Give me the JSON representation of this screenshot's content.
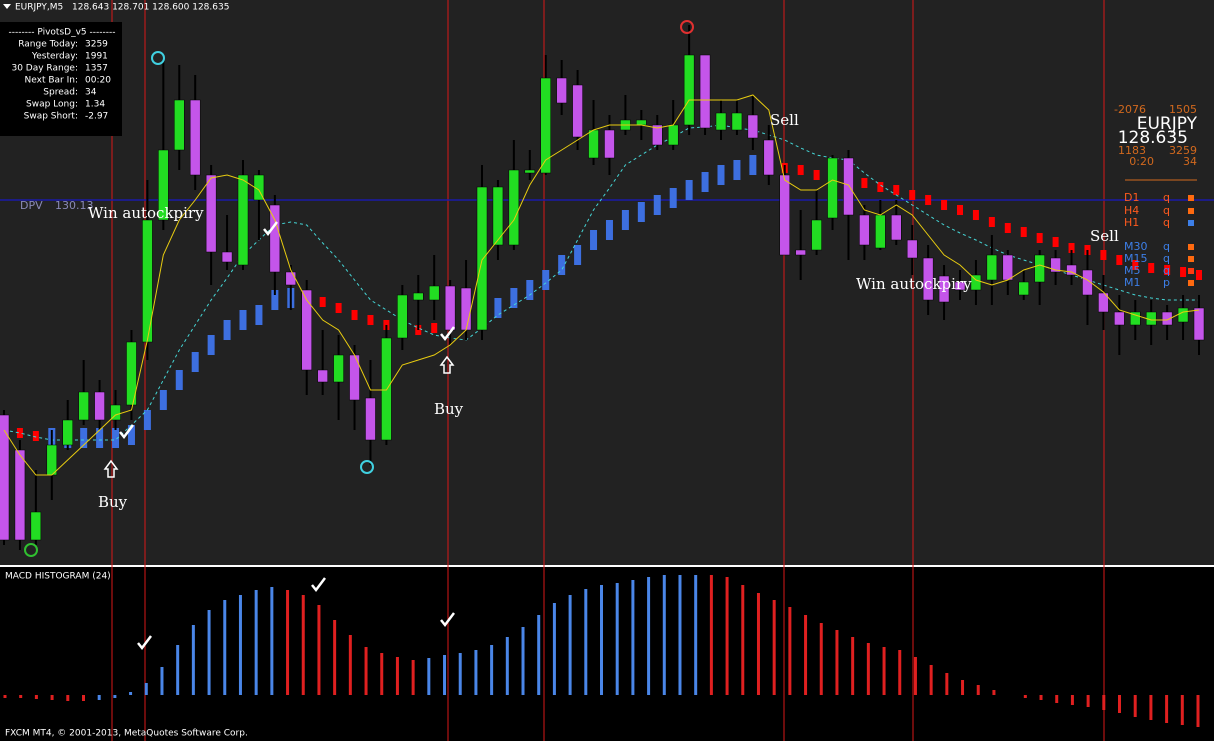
{
  "header": {
    "symbol": "EURJPY,M5",
    "ohlc": "128.643 128.701 128.600 128.635"
  },
  "pivots_panel": {
    "title": "-------- PivotsD_v5 --------",
    "rows": [
      [
        "Range Today:",
        3259
      ],
      [
        "Yesterday:",
        1991
      ],
      [
        "30 Day Range:",
        1357
      ],
      [
        "Next Bar In:",
        "00:20"
      ],
      [
        "Spread:",
        34
      ],
      [
        "Swap Long:",
        1.34
      ],
      [
        "Swap Short:",
        -2.97
      ]
    ]
  },
  "info_panel": {
    "left_top": -2076,
    "right_top": 1505,
    "symbol": "EURJPY",
    "price": 128.635,
    "left_mid": 1183,
    "right_mid": 3259,
    "timer": "0:20",
    "spread": 34,
    "timeframes": [
      {
        "label": "D1",
        "signal": "q",
        "label_color": "#ff5a1e",
        "box_color": "#ff6a10"
      },
      {
        "label": "H4",
        "signal": "q",
        "label_color": "#ff5a1e",
        "box_color": "#ff6a10"
      },
      {
        "label": "H1",
        "signal": "q",
        "label_color": "#ff5a1e",
        "box_color": "#3d7fe8"
      },
      {
        "label": "M30",
        "signal": "q",
        "label_color": "#3d7fe8",
        "box_color": "#ff6a10"
      },
      {
        "label": "M15",
        "signal": "q",
        "label_color": "#3d7fe8",
        "box_color": "#ff6a10"
      },
      {
        "label": "M5",
        "signal": "q",
        "label_color": "#3d7fe8",
        "box_color": "#ff3a10"
      },
      {
        "label": "M1",
        "signal": "p",
        "label_color": "#3d7fe8",
        "box_color": "#ff6a10"
      }
    ]
  },
  "annotations": {
    "buy": "Buy",
    "sell": "Sell",
    "win": "Win autockpiry"
  },
  "footer": "FXCM MT4, © 2001-2013, MetaQuotes Software Corp.",
  "chart_data": [
    {
      "type": "candlestick",
      "ylim": [
        126.48,
        132.13
      ],
      "up_color": "#22dd22",
      "down_color": "#c455ea",
      "wick_color": "#000000",
      "dpv": {
        "label": "DPV",
        "value": 130.13,
        "color": "#1a1aa8"
      },
      "candles": [
        [
          127.98,
          128.03,
          126.68,
          126.73
        ],
        [
          127.63,
          127.73,
          126.63,
          126.73
        ],
        [
          126.73,
          127.43,
          126.68,
          127.01
        ],
        [
          127.38,
          127.83,
          127.13,
          127.68
        ],
        [
          127.68,
          128.13,
          127.63,
          127.93
        ],
        [
          127.93,
          128.53,
          127.88,
          128.21
        ],
        [
          128.21,
          128.33,
          127.83,
          127.93
        ],
        [
          127.93,
          128.23,
          127.83,
          128.08
        ],
        [
          128.08,
          128.83,
          127.93,
          128.71
        ],
        [
          128.71,
          130.33,
          128.53,
          129.93
        ],
        [
          129.93,
          131.53,
          129.83,
          130.63
        ],
        [
          130.63,
          131.48,
          130.43,
          131.13
        ],
        [
          131.13,
          131.38,
          130.23,
          130.38
        ],
        [
          130.38,
          130.48,
          129.28,
          129.61
        ],
        [
          129.61,
          129.98,
          129.43,
          129.51
        ],
        [
          129.48,
          130.53,
          129.43,
          130.38
        ],
        [
          130.13,
          130.43,
          129.73,
          130.38
        ],
        [
          130.08,
          130.18,
          129.18,
          129.41
        ],
        [
          129.41,
          129.48,
          129.03,
          129.28
        ],
        [
          129.23,
          129.33,
          128.18,
          128.43
        ],
        [
          128.43,
          128.83,
          128.18,
          128.31
        ],
        [
          128.31,
          128.78,
          127.93,
          128.58
        ],
        [
          128.58,
          128.68,
          127.83,
          128.13
        ],
        [
          128.15,
          128.53,
          127.48,
          127.73
        ],
        [
          127.73,
          128.88,
          127.68,
          128.75
        ],
        [
          128.75,
          129.28,
          128.63,
          129.18
        ],
        [
          129.13,
          129.38,
          128.83,
          129.2
        ],
        [
          129.13,
          129.58,
          128.93,
          129.27
        ],
        [
          129.27,
          129.33,
          128.68,
          128.83
        ],
        [
          129.25,
          129.53,
          128.73,
          128.83
        ],
        [
          128.83,
          130.48,
          128.73,
          130.26
        ],
        [
          129.68,
          130.33,
          129.53,
          130.26
        ],
        [
          129.68,
          130.73,
          129.63,
          130.43
        ],
        [
          130.4,
          130.63,
          130.33,
          130.43
        ],
        [
          130.4,
          131.58,
          130.38,
          131.35
        ],
        [
          131.35,
          131.53,
          130.98,
          131.1
        ],
        [
          131.28,
          131.43,
          130.63,
          130.76
        ],
        [
          130.55,
          131.13,
          130.48,
          130.83
        ],
        [
          130.83,
          130.98,
          130.38,
          130.55
        ],
        [
          130.83,
          131.18,
          130.78,
          130.93
        ],
        [
          130.88,
          131.03,
          130.73,
          130.93
        ],
        [
          130.88,
          130.98,
          130.63,
          130.68
        ],
        [
          130.68,
          131.13,
          130.63,
          130.88
        ],
        [
          130.88,
          131.88,
          130.78,
          131.58
        ],
        [
          131.58,
          131.58,
          130.78,
          130.85
        ],
        [
          130.83,
          131.13,
          130.73,
          131.0
        ],
        [
          130.83,
          131.13,
          130.78,
          131.0
        ],
        [
          130.98,
          131.18,
          130.63,
          130.75
        ],
        [
          130.73,
          130.88,
          130.28,
          130.38
        ],
        [
          130.38,
          130.48,
          129.58,
          129.58
        ],
        [
          129.63,
          130.03,
          129.33,
          129.58
        ],
        [
          129.63,
          130.23,
          129.58,
          129.93
        ],
        [
          129.95,
          130.58,
          129.83,
          130.55
        ],
        [
          130.55,
          130.63,
          129.53,
          129.98
        ],
        [
          129.98,
          130.08,
          129.53,
          129.68
        ],
        [
          129.65,
          130.13,
          129.63,
          129.98
        ],
        [
          129.98,
          130.13,
          129.68,
          129.73
        ],
        [
          129.73,
          129.88,
          129.38,
          129.55
        ],
        [
          129.55,
          129.68,
          128.98,
          129.13
        ],
        [
          129.37,
          129.48,
          128.93,
          129.11
        ],
        [
          129.31,
          129.43,
          129.13,
          129.23
        ],
        [
          129.23,
          129.53,
          129.08,
          129.38
        ],
        [
          129.33,
          129.78,
          129.08,
          129.58
        ],
        [
          129.58,
          129.63,
          129.18,
          129.33
        ],
        [
          129.18,
          129.43,
          129.13,
          129.31
        ],
        [
          129.31,
          129.63,
          129.08,
          129.58
        ],
        [
          129.55,
          129.63,
          129.28,
          129.41
        ],
        [
          129.48,
          129.63,
          129.28,
          129.38
        ],
        [
          129.43,
          129.63,
          128.88,
          129.18
        ],
        [
          129.2,
          129.38,
          128.83,
          129.01
        ],
        [
          129.01,
          129.18,
          128.58,
          128.88
        ],
        [
          128.88,
          129.13,
          128.73,
          129.01
        ],
        [
          128.88,
          129.13,
          128.68,
          129.01
        ],
        [
          129.01,
          129.08,
          128.73,
          128.88
        ],
        [
          128.91,
          129.18,
          128.73,
          129.05
        ],
        [
          129.05,
          129.18,
          128.58,
          128.73
        ]
      ],
      "ma_fast": {
        "color": "#e8cc10",
        "values": [
          127.83,
          127.58,
          127.38,
          127.38,
          127.53,
          127.68,
          127.83,
          127.98,
          128.03,
          128.73,
          129.58,
          129.93,
          130.13,
          130.35,
          130.38,
          130.33,
          130.23,
          129.93,
          129.43,
          129.13,
          128.93,
          128.83,
          128.58,
          128.23,
          128.23,
          128.48,
          128.53,
          128.58,
          128.68,
          128.83,
          129.53,
          129.73,
          129.93,
          130.28,
          130.53,
          130.63,
          130.73,
          130.83,
          130.88,
          130.88,
          130.88,
          130.85,
          130.88,
          131.13,
          131.13,
          131.13,
          131.13,
          131.18,
          131.03,
          130.33,
          130.23,
          130.23,
          130.33,
          130.28,
          130.03,
          129.98,
          130.08,
          129.98,
          129.78,
          129.58,
          129.48,
          129.33,
          129.28,
          129.33,
          129.43,
          129.48,
          129.43,
          129.41,
          129.33,
          129.21,
          129.03,
          128.98,
          128.93,
          128.93,
          129.01,
          129.03
        ]
      },
      "ma_slow": {
        "color": "#45d6d6",
        "values": [
          127.83,
          127.8,
          127.76,
          127.73,
          127.73,
          127.73,
          127.73,
          127.73,
          127.88,
          128.03,
          128.33,
          128.63,
          128.88,
          129.13,
          129.35,
          129.58,
          129.73,
          129.88,
          129.91,
          129.88,
          129.7,
          129.53,
          129.33,
          129.13,
          129.03,
          128.93,
          128.85,
          128.78,
          128.75,
          128.73,
          128.85,
          128.98,
          129.08,
          129.18,
          129.3,
          129.43,
          129.73,
          130.03,
          130.25,
          130.48,
          130.58,
          130.68,
          130.76,
          130.85,
          130.86,
          130.88,
          130.85,
          130.83,
          130.78,
          130.73,
          130.65,
          130.58,
          130.55,
          130.53,
          130.4,
          130.28,
          130.18,
          130.08,
          129.98,
          129.88,
          129.8,
          129.73,
          129.65,
          129.58,
          129.53,
          129.48,
          129.43,
          129.38,
          129.33,
          129.28,
          129.23,
          129.18,
          129.15,
          129.13,
          129.13,
          129.13
        ]
      },
      "trend": {
        "values": [
          127.83,
          127.8,
          127.77,
          127.75,
          127.75,
          127.75,
          127.75,
          127.75,
          127.78,
          127.93,
          128.13,
          128.33,
          128.51,
          128.68,
          128.83,
          128.93,
          128.98,
          129.13,
          129.15,
          129.13,
          129.11,
          129.05,
          128.98,
          128.93,
          128.88,
          128.85,
          128.83,
          128.85,
          128.88,
          128.93,
          128.98,
          129.05,
          129.15,
          129.23,
          129.33,
          129.48,
          129.58,
          129.73,
          129.83,
          129.93,
          130.01,
          130.08,
          130.15,
          130.23,
          130.31,
          130.38,
          130.43,
          130.48,
          130.53,
          130.45,
          130.43,
          130.38,
          130.35,
          130.33,
          130.3,
          130.26,
          130.23,
          130.18,
          130.13,
          130.08,
          130.03,
          129.98,
          129.91,
          129.85,
          129.81,
          129.75,
          129.71,
          129.65,
          129.63,
          129.58,
          129.53,
          129.48,
          129.45,
          129.43,
          129.41,
          129.38
        ],
        "colors": [
          "#ff0000",
          "#ff0000",
          "#ff0000",
          "#3d6fe0",
          "#3d6fe0",
          "#3d6fe0",
          "#3d6fe0",
          "#3d6fe0",
          "#3d6fe0",
          "#3d6fe0",
          "#3d6fe0",
          "#3d6fe0",
          "#3d6fe0",
          "#3d6fe0",
          "#3d6fe0",
          "#3d6fe0",
          "#3d6fe0",
          "#3d6fe0",
          "#3d6fe0",
          "#ff0000",
          "#ff0000",
          "#ff0000",
          "#ff0000",
          "#ff0000",
          "#ff0000",
          "#ff0000",
          "#ff0000",
          "#ff0000",
          "#ff0000",
          "#3d6fe0",
          "#3d6fe0",
          "#3d6fe0",
          "#3d6fe0",
          "#3d6fe0",
          "#3d6fe0",
          "#3d6fe0",
          "#3d6fe0",
          "#3d6fe0",
          "#3d6fe0",
          "#3d6fe0",
          "#3d6fe0",
          "#3d6fe0",
          "#3d6fe0",
          "#3d6fe0",
          "#3d6fe0",
          "#3d6fe0",
          "#3d6fe0",
          "#3d6fe0",
          "#3d6fe0",
          "#ff0000",
          "#ff0000",
          "#ff0000",
          "#ff0000",
          "#ff0000",
          "#ff0000",
          "#ff0000",
          "#ff0000",
          "#ff0000",
          "#ff0000",
          "#ff0000",
          "#ff0000",
          "#ff0000",
          "#ff0000",
          "#ff0000",
          "#ff0000",
          "#ff0000",
          "#ff0000",
          "#ff0000",
          "#ff0000",
          "#ff0000",
          "#ff0000",
          "#ff0000",
          "#ff0000",
          "#ff0000",
          "#ff0000",
          "#ff0000"
        ]
      }
    },
    {
      "type": "bar",
      "title": "MACD HISTOGRAM (24)",
      "ylim": [
        -40,
        120
      ],
      "values": [
        -3,
        -3,
        -4,
        -5,
        -6,
        -6,
        -5,
        -3,
        3,
        12,
        28,
        50,
        70,
        85,
        95,
        100,
        105,
        108,
        105,
        100,
        90,
        75,
        60,
        48,
        42,
        38,
        35,
        37,
        40,
        42,
        45,
        50,
        58,
        68,
        80,
        92,
        100,
        106,
        110,
        112,
        115,
        118,
        120,
        120,
        120,
        120,
        118,
        110,
        102,
        95,
        88,
        80,
        72,
        65,
        58,
        52,
        48,
        45,
        38,
        30,
        22,
        15,
        10,
        5,
        0,
        -3,
        -5,
        -8,
        -10,
        -12,
        -15,
        -18,
        -22,
        -25,
        -28,
        -30,
        -32
      ],
      "colors": [
        "#e02020",
        "#e02020",
        "#e02020",
        "#e02020",
        "#e02020",
        "#e02020",
        "#4a86e8",
        "#4a86e8",
        "#4a86e8",
        "#4a86e8",
        "#4a86e8",
        "#4a86e8",
        "#4a86e8",
        "#4a86e8",
        "#4a86e8",
        "#4a86e8",
        "#4a86e8",
        "#4a86e8",
        "#e02020",
        "#e02020",
        "#e02020",
        "#e02020",
        "#e02020",
        "#e02020",
        "#e02020",
        "#e02020",
        "#e02020",
        "#4a86e8",
        "#4a86e8",
        "#4a86e8",
        "#4a86e8",
        "#4a86e8",
        "#4a86e8",
        "#4a86e8",
        "#4a86e8",
        "#4a86e8",
        "#4a86e8",
        "#4a86e8",
        "#4a86e8",
        "#4a86e8",
        "#4a86e8",
        "#4a86e8",
        "#4a86e8",
        "#4a86e8",
        "#4a86e8",
        "#e02020",
        "#e02020",
        "#e02020",
        "#e02020",
        "#e02020",
        "#e02020",
        "#e02020",
        "#e02020",
        "#e02020",
        "#e02020",
        "#e02020",
        "#e02020",
        "#e02020",
        "#e02020",
        "#e02020",
        "#e02020",
        "#e02020",
        "#e02020",
        "#e02020",
        "#e02020",
        "#e02020",
        "#e02020",
        "#e02020",
        "#e02020",
        "#e02020",
        "#e02020",
        "#e02020",
        "#e02020",
        "#e02020",
        "#e02020",
        "#e02020",
        "#e02020"
      ]
    }
  ]
}
